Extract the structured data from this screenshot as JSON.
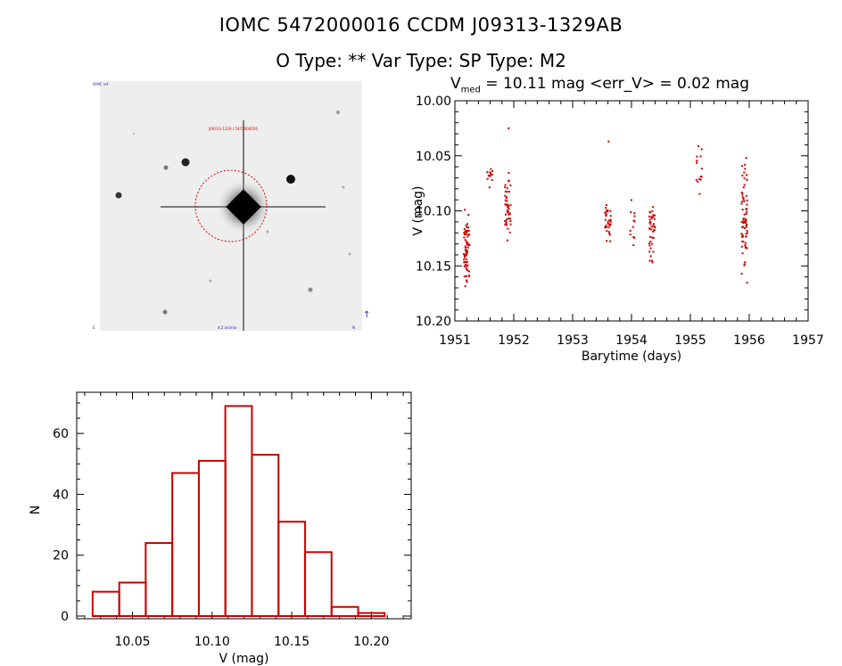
{
  "header": {
    "title_line1": "IOMC 5472000016    CCDM J09313-1329AB",
    "title_line2": "O Type: **  Var Type:   SP Type: M2"
  },
  "lightcurve_header": {
    "v_label": "V",
    "v_sub": "med",
    "rest": " = 10.11 mag <err_V> = 0.02 mag"
  },
  "image_panel": {
    "top_left_tag": "IOMC ref",
    "red_label": "J09313-1329 / 5472000016",
    "bottom_label": "4.2 arcmin",
    "bottom_left_tag": "E",
    "bottom_right_tag": "N",
    "right_tag": "↑"
  },
  "colors": {
    "data": "#cc0000",
    "axis": "#000000"
  },
  "chart_data": [
    {
      "type": "scatter",
      "xlabel": "Barytime (days)",
      "ylabel": "V (mag)",
      "xlim": [
        1951,
        1957
      ],
      "ylim": [
        10.0,
        10.2
      ],
      "y_inverted": true,
      "xticks": [
        1951,
        1952,
        1953,
        1954,
        1955,
        1956,
        1957
      ],
      "yticks": [
        "10.00",
        "10.05",
        "10.10",
        "10.15",
        "10.20"
      ],
      "clusters": [
        {
          "x": 1951.2,
          "y_min": 10.095,
          "y_max": 10.18,
          "n": 70
        },
        {
          "x": 1951.6,
          "y_min": 10.057,
          "y_max": 10.082,
          "n": 12
        },
        {
          "x": 1951.9,
          "y_min": 10.06,
          "y_max": 10.14,
          "n": 45
        },
        {
          "x": 1951.88,
          "y_min": 10.025,
          "y_max": 10.025,
          "n": 1
        },
        {
          "x": 1953.6,
          "y_min": 10.085,
          "y_max": 10.138,
          "n": 35
        },
        {
          "x": 1953.62,
          "y_min": 10.037,
          "y_max": 10.037,
          "n": 1
        },
        {
          "x": 1954.02,
          "y_min": 10.078,
          "y_max": 10.14,
          "n": 12
        },
        {
          "x": 1954.35,
          "y_min": 10.08,
          "y_max": 10.155,
          "n": 40
        },
        {
          "x": 1955.15,
          "y_min": 10.03,
          "y_max": 10.095,
          "n": 14
        },
        {
          "x": 1955.92,
          "y_min": 10.037,
          "y_max": 10.18,
          "n": 70
        }
      ]
    },
    {
      "type": "bar",
      "xlabel": "V (mag)",
      "ylabel": "N",
      "xlim": [
        10.015,
        10.225
      ],
      "ylim": [
        0,
        70
      ],
      "xticks": [
        "10.05",
        "10.10",
        "10.15",
        "10.20"
      ],
      "yticks": [
        "0",
        "20",
        "40",
        "60"
      ],
      "bin_width": 0.0167,
      "bin_left_edges": [
        10.025,
        10.0417,
        10.0583,
        10.075,
        10.0917,
        10.1083,
        10.125,
        10.1417,
        10.1583,
        10.175,
        10.1917
      ],
      "values": [
        8,
        11,
        24,
        47,
        51,
        69,
        53,
        31,
        21,
        3,
        1
      ]
    }
  ]
}
